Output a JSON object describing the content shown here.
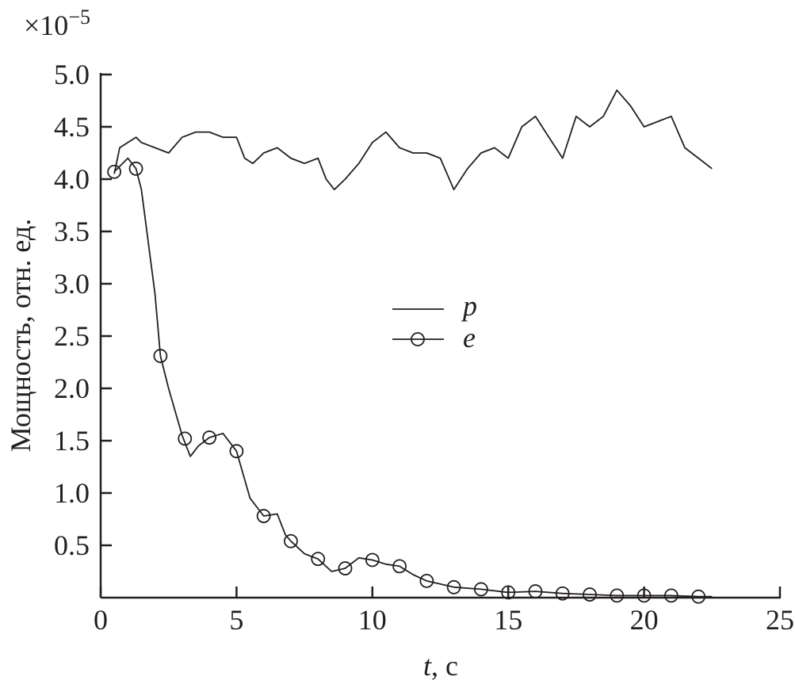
{
  "chart_data": {
    "type": "line",
    "title": "",
    "xlabel_var": "t",
    "xlabel_unit": ", с",
    "ylabel": "Мощность, отн. ед.",
    "y_multiplier": "×10",
    "y_multiplier_exp": "−5",
    "xlim": [
      0,
      25
    ],
    "ylim": [
      0,
      5.0
    ],
    "xticks": [
      "0",
      "5",
      "10",
      "15",
      "20",
      "25"
    ],
    "yticks": [
      "0.5",
      "1.0",
      "1.5",
      "2.0",
      "2.5",
      "3.0",
      "3.5",
      "4.0",
      "4.5",
      "5.0"
    ],
    "grid": false,
    "legend_placement": "center",
    "color": "#231f20",
    "series": [
      {
        "name": "p",
        "marker": "none",
        "x": [
          0.5,
          0.7,
          1.0,
          1.3,
          1.5,
          2.0,
          2.5,
          3.0,
          3.5,
          4.0,
          4.5,
          5.0,
          5.3,
          5.6,
          6.0,
          6.5,
          7.0,
          7.5,
          8.0,
          8.3,
          8.6,
          9.0,
          9.5,
          10.0,
          10.5,
          11.0,
          11.5,
          12.0,
          12.5,
          13.0,
          13.5,
          14.0,
          14.5,
          15.0,
          15.5,
          16.0,
          16.5,
          17.0,
          17.5,
          18.0,
          18.5,
          19.0,
          19.5,
          20.0,
          20.5,
          21.0,
          21.5,
          22.0,
          22.5
        ],
        "y": [
          4.05,
          4.3,
          4.35,
          4.4,
          4.35,
          4.3,
          4.25,
          4.4,
          4.45,
          4.45,
          4.4,
          4.4,
          4.2,
          4.15,
          4.25,
          4.3,
          4.2,
          4.15,
          4.2,
          4.0,
          3.9,
          4.0,
          4.15,
          4.35,
          4.45,
          4.3,
          4.25,
          4.25,
          4.2,
          3.9,
          4.1,
          4.25,
          4.3,
          4.2,
          4.5,
          4.6,
          4.4,
          4.2,
          4.6,
          4.5,
          4.6,
          4.85,
          4.7,
          4.5,
          4.55,
          4.6,
          4.3,
          4.2,
          4.1
        ]
      },
      {
        "name": "e",
        "marker": "circle",
        "x": [
          0.5,
          1.0,
          1.3,
          1.5,
          2.0,
          2.2,
          2.5,
          3.0,
          3.3,
          3.6,
          4.0,
          4.5,
          5.0,
          5.5,
          6.0,
          6.5,
          6.8,
          7.0,
          7.5,
          8.0,
          8.5,
          9.0,
          9.5,
          10.0,
          10.5,
          11.0,
          11.5,
          12.0,
          13.0,
          14.0,
          15.0,
          16.0,
          17.0,
          18.0,
          19.0,
          20.0,
          21.0,
          22.0,
          22.5
        ],
        "y": [
          4.07,
          4.2,
          4.1,
          3.9,
          2.9,
          2.31,
          2.0,
          1.55,
          1.35,
          1.45,
          1.53,
          1.57,
          1.4,
          0.95,
          0.78,
          0.8,
          0.6,
          0.54,
          0.42,
          0.37,
          0.25,
          0.28,
          0.38,
          0.36,
          0.32,
          0.3,
          0.22,
          0.16,
          0.1,
          0.08,
          0.05,
          0.06,
          0.04,
          0.03,
          0.02,
          0.02,
          0.02,
          0.01,
          0.01
        ],
        "marker_x": [
          0.5,
          1.3,
          2.2,
          3.1,
          4.0,
          5.0,
          6.0,
          7.0,
          8.0,
          9.0,
          10,
          11,
          12,
          13,
          14,
          15,
          16,
          17,
          18,
          19,
          20,
          21,
          22
        ],
        "marker_y": [
          4.07,
          4.1,
          2.31,
          1.52,
          1.53,
          1.4,
          0.78,
          0.54,
          0.37,
          0.28,
          0.36,
          0.3,
          0.16,
          0.1,
          0.08,
          0.05,
          0.06,
          0.04,
          0.03,
          0.02,
          0.02,
          0.02,
          0.01
        ]
      }
    ]
  }
}
